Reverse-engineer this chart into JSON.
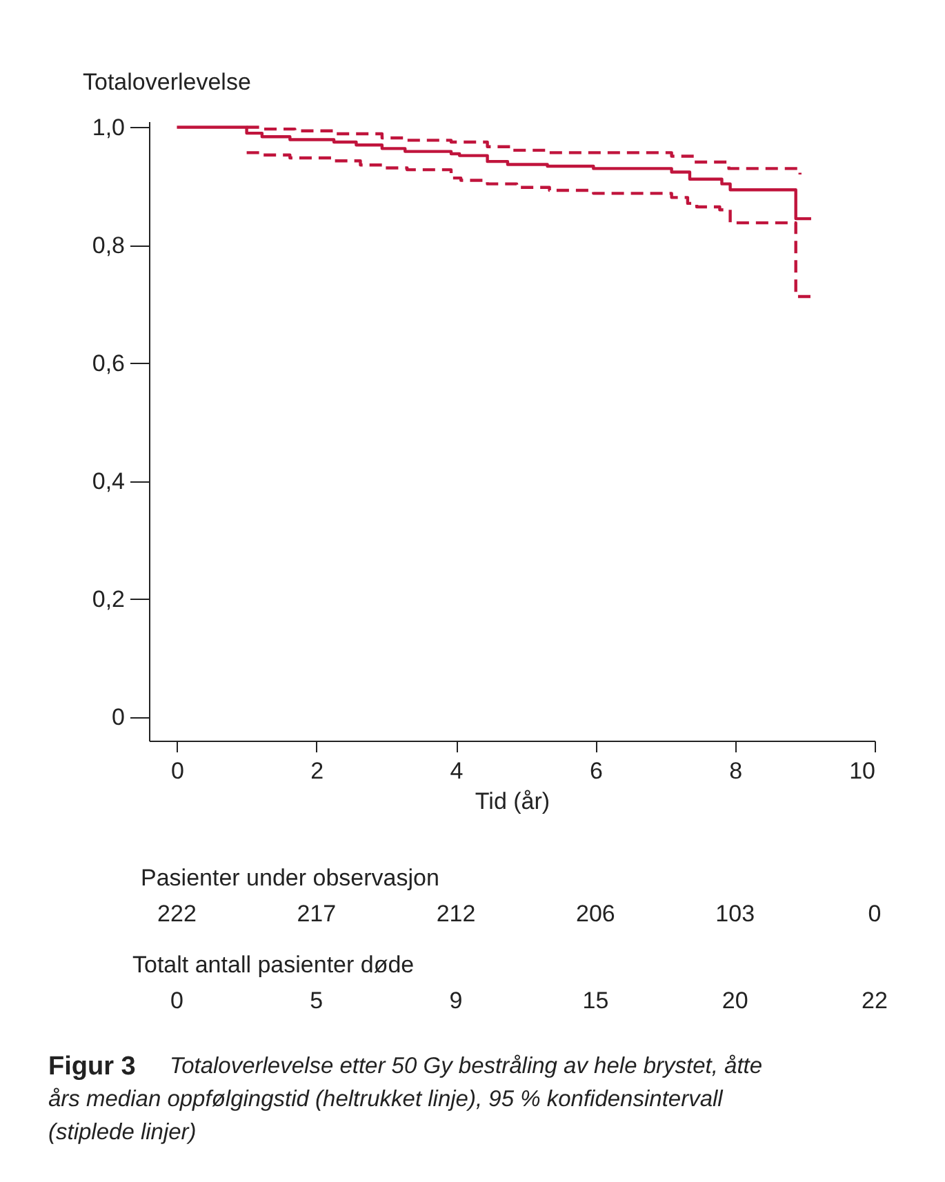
{
  "chart_data": {
    "type": "step",
    "ylabel": "Totaloverlevelse",
    "xlabel": "Tid (år)",
    "xlim": [
      -0.4,
      10
    ],
    "xticks": [
      0,
      2,
      4,
      6,
      8,
      10
    ],
    "ylim": [
      -0.04,
      1.01
    ],
    "yticks": [
      {
        "value": 0,
        "label": "0"
      },
      {
        "value": 0.2,
        "label": "0,2"
      },
      {
        "value": 0.4,
        "label": "0,4"
      },
      {
        "value": 0.6,
        "label": "0,6"
      },
      {
        "value": 0.8,
        "label": "0,8"
      },
      {
        "value": 1,
        "label": "1,0"
      }
    ],
    "series": [
      {
        "color": "#c0143c",
        "line_style": "solid",
        "x": [
          0,
          1.0,
          1.22,
          1.62,
          2.25,
          2.57,
          2.94,
          3.27,
          3.93,
          4.05,
          4.45,
          4.74,
          5.31,
          5.97,
          7.09,
          7.35,
          7.81,
          7.93,
          8.87,
          9.09
        ],
        "values": [
          1.0,
          0.99,
          0.984,
          0.979,
          0.975,
          0.97,
          0.964,
          0.959,
          0.955,
          0.952,
          0.942,
          0.937,
          0.934,
          0.93,
          0.924,
          0.912,
          0.904,
          0.894,
          0.845,
          0.845
        ]
      },
      {
        "color": "#c0143c",
        "line_style": "dashed",
        "x": [
          1.0,
          1.22,
          1.69,
          2.25,
          2.94,
          3.27,
          3.93,
          4.45,
          4.82,
          5.34,
          7.09,
          7.42,
          7.91,
          8.93
        ],
        "values": [
          1.0,
          0.997,
          0.994,
          0.989,
          0.982,
          0.978,
          0.975,
          0.967,
          0.961,
          0.957,
          0.951,
          0.941,
          0.93,
          0.92
        ]
      },
      {
        "color": "#c0143c",
        "line_style": "dashed",
        "x": [
          1.0,
          1.22,
          1.62,
          2.24,
          2.63,
          2.94,
          3.3,
          3.93,
          4.07,
          4.45,
          4.87,
          5.34,
          5.97,
          7.09,
          7.32,
          7.45,
          7.78,
          7.93,
          8.87,
          9.09
        ],
        "values": [
          0.957,
          0.953,
          0.948,
          0.943,
          0.936,
          0.931,
          0.928,
          0.914,
          0.91,
          0.904,
          0.898,
          0.893,
          0.888,
          0.881,
          0.871,
          0.865,
          0.86,
          0.838,
          0.713,
          0.713
        ]
      }
    ],
    "annotations": [
      "Pasienter under observasjon",
      "222",
      "217",
      "212",
      "206",
      "103",
      "0",
      "Totalt antall pasienter døde",
      "0",
      "5",
      "9",
      "15",
      "20",
      "22",
      "Figur 3",
      "Totaloverlevelse etter 50 Gy bestråling av hele brystet, åtte års median oppfølgingstid (heltrukket linje), 95 % konfidensintervall (stiplede linjer)"
    ]
  }
}
